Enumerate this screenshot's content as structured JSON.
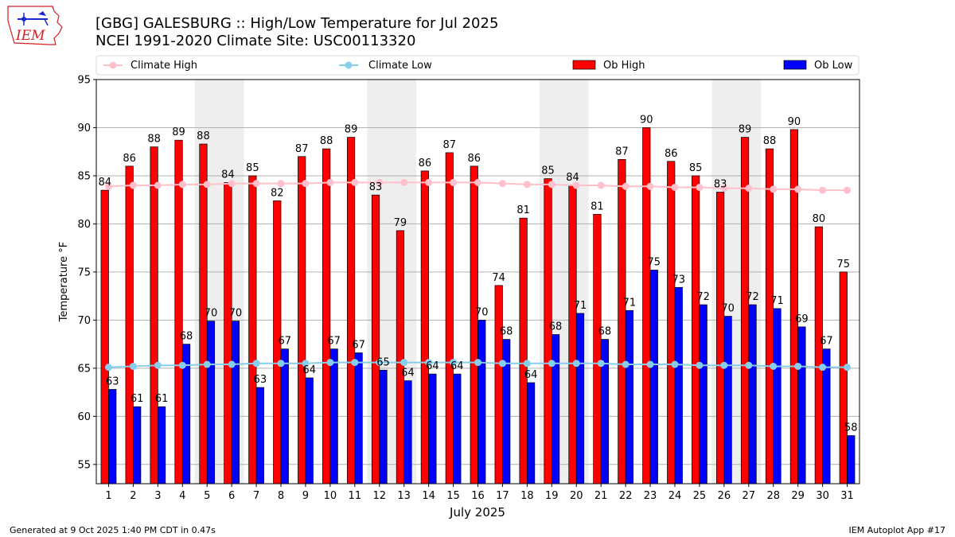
{
  "header": {
    "title_line1": "[GBG] GALESBURG :: High/Low Temperature for Jul 2025",
    "title_line2": "NCEI 1991-2020 Climate Site: USC00113320",
    "logo_text": "IEM"
  },
  "footer": {
    "left": "Generated at 9 Oct 2025 1:40 PM CDT in 0.47s",
    "right": "IEM Autoplot App #17"
  },
  "colors": {
    "ob_high": "#ff0000",
    "ob_low": "#0000ff",
    "climate_high": "#ffc0cb",
    "climate_low": "#87ceeb",
    "weekend_shade": "#eeeeee",
    "grid": "#b0b0b0"
  },
  "chart_data": {
    "type": "bar",
    "title": "[GBG] GALESBURG :: High/Low Temperature for Jul 2025",
    "subtitle": "NCEI 1991-2020 Climate Site: USC00113320",
    "xlabel": "July 2025",
    "ylabel": "Temperature °F",
    "ylim": [
      53,
      95
    ],
    "yticks": [
      55,
      60,
      65,
      70,
      75,
      80,
      85,
      90,
      95
    ],
    "grid": true,
    "legend_position": "top",
    "categories": [
      "1",
      "2",
      "3",
      "4",
      "5",
      "6",
      "7",
      "8",
      "9",
      "10",
      "11",
      "12",
      "13",
      "14",
      "15",
      "16",
      "17",
      "18",
      "19",
      "20",
      "21",
      "22",
      "23",
      "24",
      "25",
      "26",
      "27",
      "28",
      "29",
      "30",
      "31"
    ],
    "shaded_days": [
      [
        5,
        6
      ],
      [
        12,
        13
      ],
      [
        19,
        20
      ],
      [
        26,
        27
      ]
    ],
    "series": [
      {
        "name": "Ob High",
        "kind": "bar",
        "values": [
          83.5,
          86,
          88,
          88.7,
          88.3,
          84.3,
          85,
          82.4,
          87,
          87.8,
          89,
          83,
          79.3,
          85.5,
          87.4,
          86,
          73.6,
          80.6,
          84.7,
          84,
          81,
          86.7,
          90,
          86.5,
          85,
          83.3,
          89,
          87.8,
          89.8,
          79.7,
          75
        ],
        "labels": [
          "84",
          "86",
          "88",
          "89",
          "88",
          "84",
          "85",
          "82",
          "87",
          "88",
          "89",
          "83",
          "79",
          "86",
          "87",
          "86",
          "74",
          "81",
          "85",
          "84",
          "81",
          "87",
          "90",
          "86",
          "85",
          "83",
          "89",
          "88",
          "90",
          "80",
          "75"
        ]
      },
      {
        "name": "Ob Low",
        "kind": "bar",
        "values": [
          62.8,
          61,
          61,
          67.5,
          69.9,
          69.9,
          63,
          67,
          64,
          67,
          66.6,
          64.8,
          63.7,
          64.4,
          64.4,
          70,
          68,
          63.5,
          68.5,
          70.7,
          68,
          71,
          75.2,
          73.4,
          71.6,
          70.4,
          71.6,
          71.2,
          69.3,
          67,
          58
        ],
        "labels": [
          "63",
          "61",
          "61",
          "68",
          "70",
          "70",
          "63",
          "67",
          "64",
          "67",
          "67",
          "65",
          "64",
          "64",
          "64",
          "70",
          "68",
          "64",
          "68",
          "71",
          "68",
          "71",
          "75",
          "73",
          "72",
          "70",
          "72",
          "71",
          "69",
          "67",
          "58"
        ]
      },
      {
        "name": "Climate High",
        "kind": "line",
        "values": [
          83.9,
          84.0,
          84.0,
          84.1,
          84.1,
          84.2,
          84.2,
          84.2,
          84.2,
          84.3,
          84.3,
          84.3,
          84.3,
          84.3,
          84.3,
          84.3,
          84.2,
          84.1,
          84.1,
          84.0,
          84.0,
          83.9,
          83.9,
          83.8,
          83.8,
          83.7,
          83.7,
          83.6,
          83.6,
          83.5,
          83.5
        ]
      },
      {
        "name": "Climate Low",
        "kind": "line",
        "values": [
          65.1,
          65.2,
          65.3,
          65.3,
          65.4,
          65.4,
          65.5,
          65.5,
          65.5,
          65.6,
          65.6,
          65.6,
          65.6,
          65.6,
          65.6,
          65.6,
          65.5,
          65.5,
          65.5,
          65.5,
          65.5,
          65.4,
          65.4,
          65.4,
          65.3,
          65.3,
          65.3,
          65.2,
          65.2,
          65.1,
          65.1
        ]
      }
    ],
    "legend": [
      "Climate High",
      "Climate Low",
      "Ob High",
      "Ob Low"
    ]
  }
}
